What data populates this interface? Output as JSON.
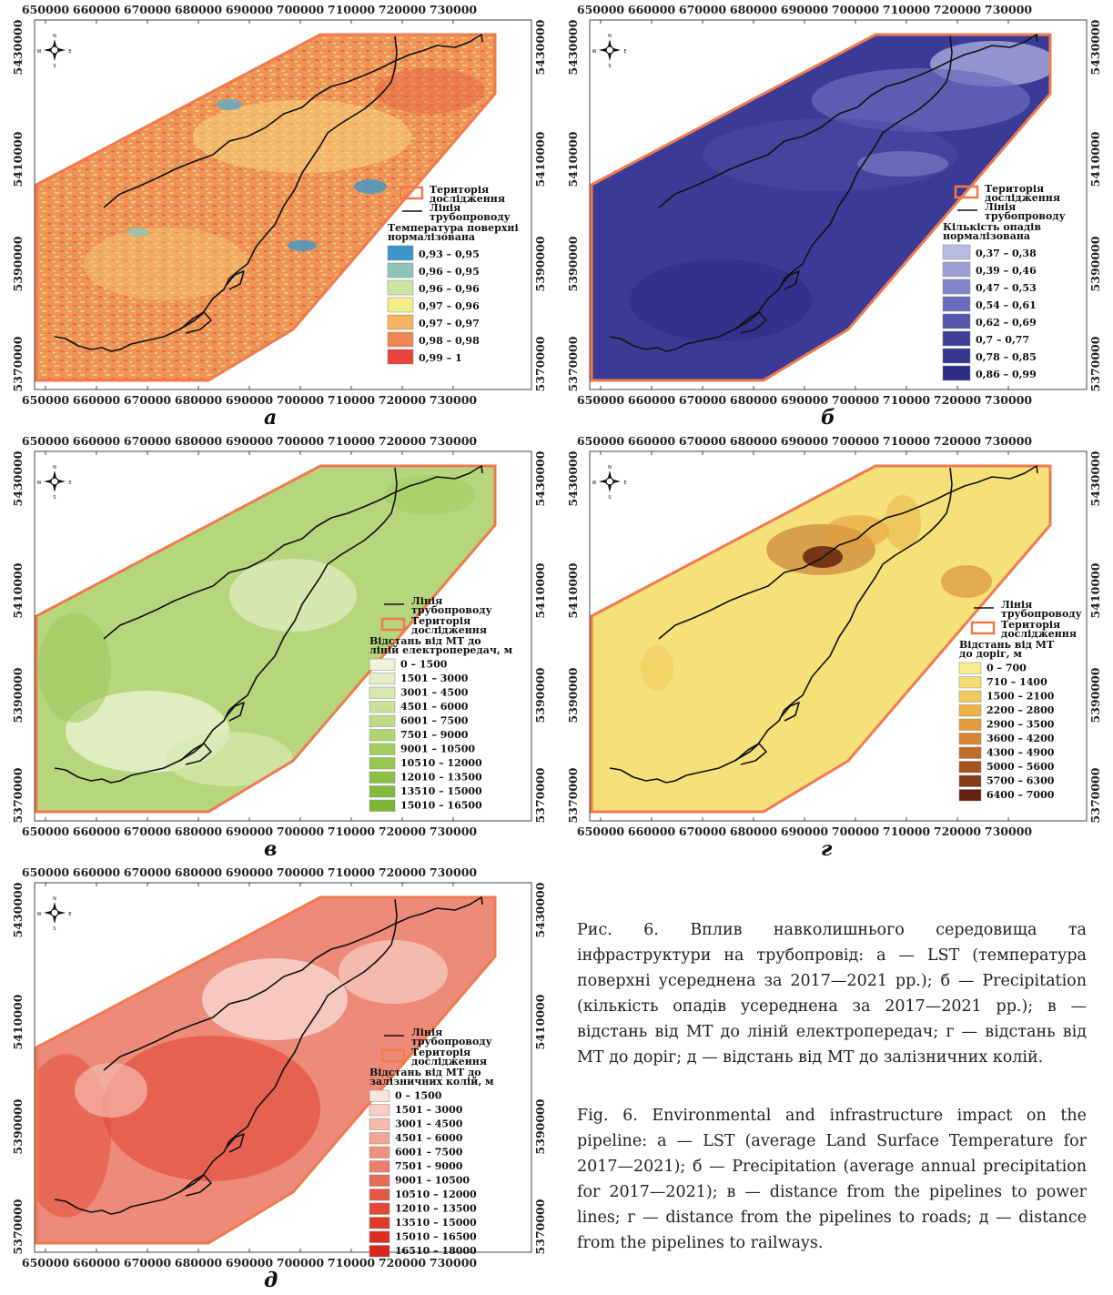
{
  "axes": {
    "x_ticks": [
      "650000",
      "660000",
      "670000",
      "680000",
      "690000",
      "700000",
      "710000",
      "720000",
      "730000"
    ],
    "y_ticks": [
      "5430000",
      "5410000",
      "5390000",
      "5370000"
    ]
  },
  "legend_common": {
    "study_area": "Територія дослідження",
    "pipeline": "Лінія трубопроводу"
  },
  "panels": [
    {
      "label": "а",
      "legend_title": "Температура поверхні нормалізована",
      "classes": [
        {
          "label": "0,93 – 0,95",
          "color": "#3b97c9"
        },
        {
          "label": "0,96 – 0,95",
          "color": "#8ec3b8"
        },
        {
          "label": "0,96 – 0,96",
          "color": "#cde4a4"
        },
        {
          "label": "0,97 – 0,96",
          "color": "#f3ee88"
        },
        {
          "label": "0,97 – 0,97",
          "color": "#f7b35e"
        },
        {
          "label": "0,98 – 0,98",
          "color": "#ef8550"
        },
        {
          "label": "0,99 – 1",
          "color": "#e9423f"
        }
      ]
    },
    {
      "label": "б",
      "legend_title": "Кількість опадів нормалізована",
      "classes": [
        {
          "label": "0,37 – 0,38",
          "color": "#b9bbe0"
        },
        {
          "label": "0,39 – 0,46",
          "color": "#9c9ed6"
        },
        {
          "label": "0,47 – 0,53",
          "color": "#8184c9"
        },
        {
          "label": "0,54 – 0,61",
          "color": "#6a6cbc"
        },
        {
          "label": "0,62 – 0,69",
          "color": "#5556ad"
        },
        {
          "label": "0,7 – 0,77",
          "color": "#3f3f9c"
        },
        {
          "label": "0,78 – 0,85",
          "color": "#35358f"
        },
        {
          "label": "0,86 – 0,99",
          "color": "#2e2c88"
        }
      ]
    },
    {
      "label": "в",
      "legend_title": "Відстань від МТ до ліній електропередач, м",
      "classes": [
        {
          "label": "0 – 1500",
          "color": "#eef4d8"
        },
        {
          "label": "1501 – 3000",
          "color": "#e3eec4"
        },
        {
          "label": "3001 – 4500",
          "color": "#d7e8ae"
        },
        {
          "label": "4501 – 6000",
          "color": "#cbe199"
        },
        {
          "label": "6001 – 7500",
          "color": "#bedb85"
        },
        {
          "label": "7501 – 9000",
          "color": "#b1d472"
        },
        {
          "label": "9001 – 10500",
          "color": "#a4cd60"
        },
        {
          "label": "10510 – 12000",
          "color": "#98c651"
        },
        {
          "label": "12010 – 13500",
          "color": "#8dc045"
        },
        {
          "label": "13510 – 15000",
          "color": "#84bb3d"
        },
        {
          "label": "15010 – 16500",
          "color": "#7db536"
        }
      ]
    },
    {
      "label": "г",
      "legend_title": "Відстань від МТ до доріг, м",
      "classes": [
        {
          "label": "0 – 700",
          "color": "#f8ee8d"
        },
        {
          "label": "710 – 1400",
          "color": "#f4de73"
        },
        {
          "label": "1500 – 2100",
          "color": "#efc95b"
        },
        {
          "label": "2200 – 2800",
          "color": "#eab348"
        },
        {
          "label": "2900 – 3500",
          "color": "#e49d3a"
        },
        {
          "label": "3600 – 4200",
          "color": "#d78530"
        },
        {
          "label": "4300 – 4900",
          "color": "#c06c26"
        },
        {
          "label": "5000 – 5600",
          "color": "#a4531d"
        },
        {
          "label": "5700 – 6300",
          "color": "#853b15"
        },
        {
          "label": "6400 – 7000",
          "color": "#66220e"
        }
      ]
    },
    {
      "label": "д",
      "legend_title": "Відстань від МТ до залізничних колій, м",
      "classes": [
        {
          "label": "0 – 1500",
          "color": "#fbe3de"
        },
        {
          "label": "1501 – 3000",
          "color": "#f8cec5"
        },
        {
          "label": "3001 – 4500",
          "color": "#f5b9ad"
        },
        {
          "label": "4501 – 6000",
          "color": "#f2a596"
        },
        {
          "label": "6001 – 7500",
          "color": "#ef9180"
        },
        {
          "label": "7501 – 9000",
          "color": "#ec7d6b"
        },
        {
          "label": "9001 – 10500",
          "color": "#e96a57"
        },
        {
          "label": "10510 – 12000",
          "color": "#e65845"
        },
        {
          "label": "12010 – 13500",
          "color": "#e34736"
        },
        {
          "label": "13510 – 15000",
          "color": "#e03a2a"
        },
        {
          "label": "15010 – 16500",
          "color": "#dd2f21"
        },
        {
          "label": "16510 – 18000",
          "color": "#d9261a"
        }
      ]
    }
  ],
  "caption_ua": "Рис. 6. Вплив навколишнього середовища та інфраструктури на трубопровід: а — LST (температура поверхні усереднена за 2017—2021 рр.); б — Precipitation (кількість опадів усереднена за 2017—2021 рр.); в — відстань від МТ до ліній електропередач; г — відстань від МТ до доріг; д — відстань від МТ до залізничних колій.",
  "caption_en": "Fig. 6. Environmental and infrastructure impact on the pipeline: а — LST (average Land Surface Temperature for 2017—2021); б — Precipitation (average annual precipitation for 2017—2021); в — distance from the pipelines to power lines; г — distance from the pipelines to roads; д — distance from the pipelines to railways."
}
